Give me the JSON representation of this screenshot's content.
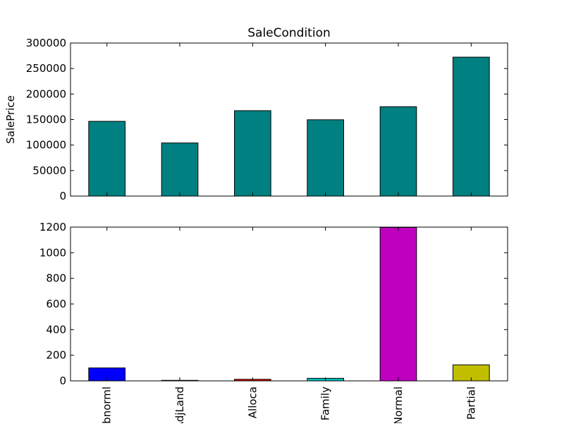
{
  "chart_data": [
    {
      "type": "bar",
      "title": "SaleCondition",
      "ylabel": "SalePrice",
      "xlabel": "",
      "categories": [
        "Abnorml",
        "AdjLand",
        "Alloca",
        "Family",
        "Normal",
        "Partial"
      ],
      "values": [
        146500,
        104100,
        167400,
        149600,
        175200,
        272300
      ],
      "colors": [
        "#008080",
        "#008080",
        "#008080",
        "#008080",
        "#008080",
        "#008080"
      ],
      "ylim": [
        0,
        300000
      ],
      "yticks": [
        0,
        50000,
        100000,
        150000,
        200000,
        250000,
        300000
      ],
      "show_x_tick_labels": false,
      "grid": false
    },
    {
      "type": "bar",
      "title": "",
      "ylabel": "",
      "xlabel": "",
      "categories": [
        "Abnorml",
        "AdjLand",
        "Alloca",
        "Family",
        "Normal",
        "Partial"
      ],
      "values": [
        101,
        4,
        12,
        20,
        1198,
        125
      ],
      "colors": [
        "#0000ff",
        "#008000",
        "#ff0000",
        "#00bfbf",
        "#bf00bf",
        "#bfbf00"
      ],
      "ylim": [
        0,
        1200
      ],
      "yticks": [
        0,
        200,
        400,
        600,
        800,
        1000,
        1200
      ],
      "show_x_tick_labels": true,
      "grid": false
    }
  ]
}
